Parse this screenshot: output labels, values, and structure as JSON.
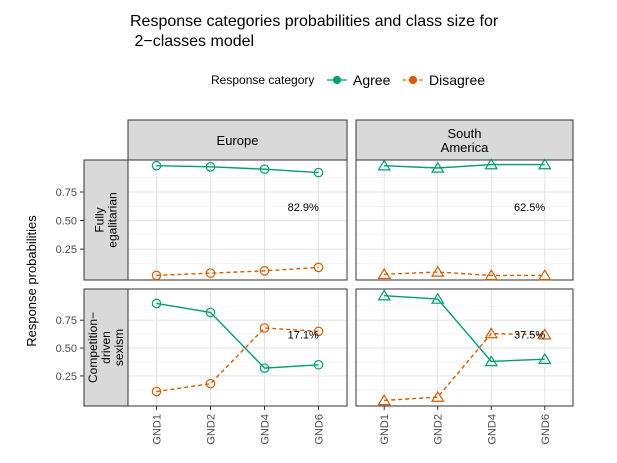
{
  "chart_data": {
    "type": "line",
    "title_lines": [
      "Response categories probabilities and class size for",
      " 2−classes model"
    ],
    "ylabel": "Response probabilities",
    "legend": {
      "title": "Response category",
      "placement": "top",
      "entries": [
        {
          "name": "Agree",
          "color": "#009E73",
          "linetype": "solid"
        },
        {
          "name": "Disagree",
          "color": "#D55E00",
          "linetype": "dashed"
        }
      ]
    },
    "categories": [
      "GND1",
      "GND2",
      "GND4",
      "GND6"
    ],
    "ylim": [
      0,
      1
    ],
    "yticks": [
      "0.25",
      "0.50",
      "0.75"
    ],
    "ytick_values": [
      0.25,
      0.5,
      0.75
    ],
    "grid": true,
    "columns": [
      {
        "label_lines": [
          "Europe"
        ],
        "marker": "circle"
      },
      {
        "label_lines": [
          "South",
          "America"
        ],
        "marker": "triangle"
      }
    ],
    "rows": [
      {
        "label_lines": [
          "Fully",
          "egalitarian"
        ]
      },
      {
        "label_lines": [
          "Competition−",
          "driven",
          "sexism"
        ]
      }
    ],
    "panels": [
      {
        "row": 0,
        "col": 0,
        "class_size": "82.9%",
        "series": [
          {
            "name": "Agree",
            "values": [
              0.98,
              0.97,
              0.95,
              0.92
            ]
          },
          {
            "name": "Disagree",
            "values": [
              0.02,
              0.04,
              0.06,
              0.09
            ]
          }
        ]
      },
      {
        "row": 0,
        "col": 1,
        "class_size": "62.5%",
        "series": [
          {
            "name": "Agree",
            "values": [
              0.98,
              0.96,
              0.99,
              0.99
            ]
          },
          {
            "name": "Disagree",
            "values": [
              0.03,
              0.05,
              0.02,
              0.02
            ]
          }
        ]
      },
      {
        "row": 1,
        "col": 0,
        "class_size": "17.1%",
        "series": [
          {
            "name": "Agree",
            "values": [
              0.9,
              0.82,
              0.32,
              0.35
            ]
          },
          {
            "name": "Disagree",
            "values": [
              0.11,
              0.18,
              0.68,
              0.65
            ]
          }
        ]
      },
      {
        "row": 1,
        "col": 1,
        "class_size": "37.5%",
        "series": [
          {
            "name": "Agree",
            "values": [
              0.97,
              0.94,
              0.38,
              0.4
            ]
          },
          {
            "name": "Disagree",
            "values": [
              0.03,
              0.06,
              0.63,
              0.62
            ]
          }
        ]
      }
    ]
  }
}
